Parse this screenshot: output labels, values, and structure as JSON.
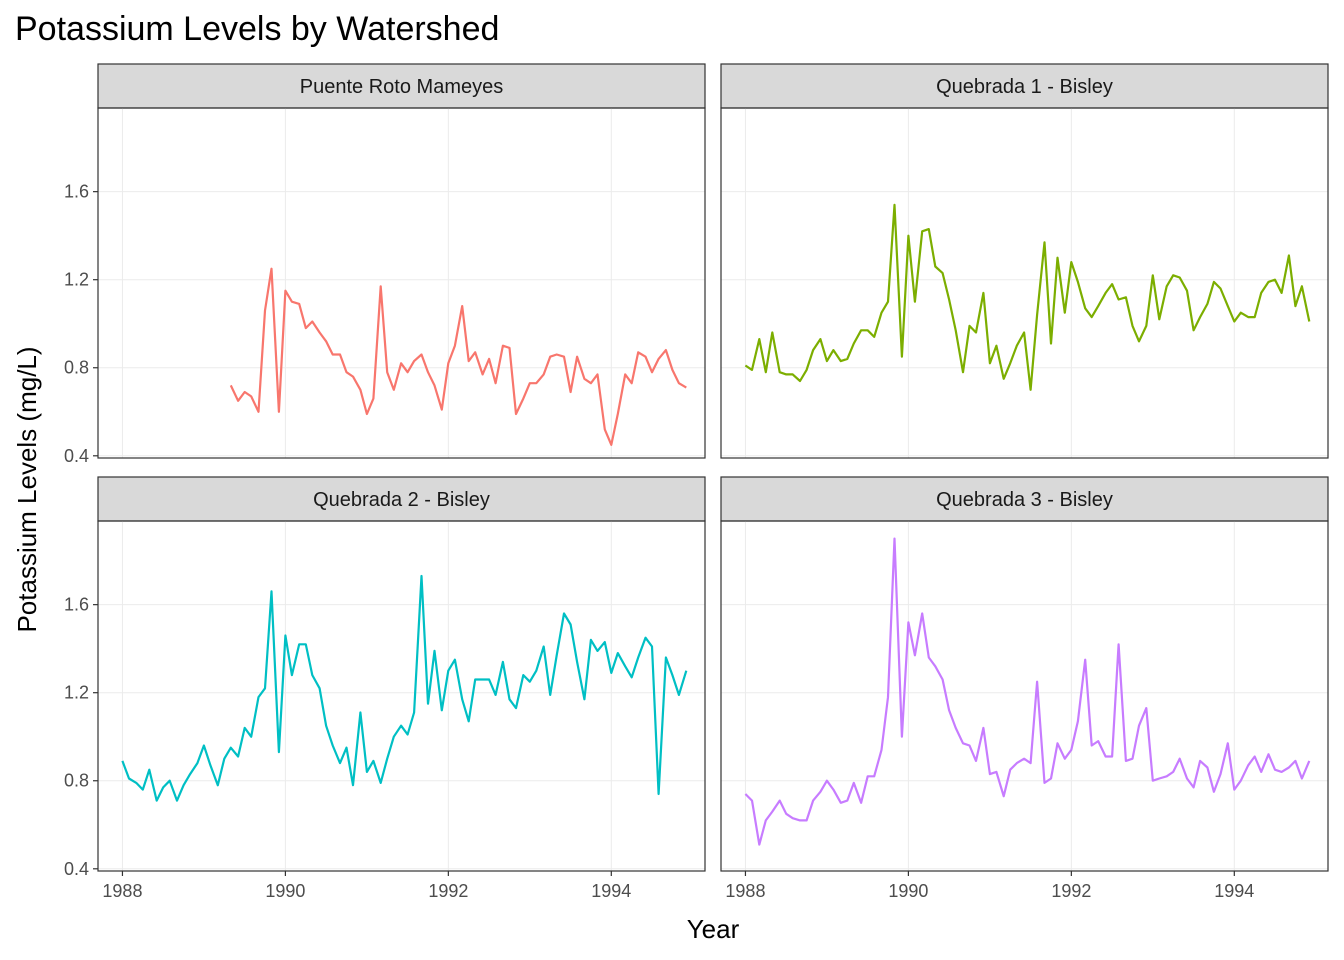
{
  "chart_data": {
    "type": "line",
    "title": "Potassium Levels by Watershed",
    "xlabel": "Year",
    "ylabel": "Potassium Levels (mg/L)",
    "xlim": [
      1987.7,
      1995.15
    ],
    "ylim": [
      0.39,
      1.98
    ],
    "x_ticks": [
      1988,
      1990,
      1992,
      1994
    ],
    "y_ticks": [
      0.4,
      0.8,
      1.2,
      1.6
    ],
    "x_tick_labels": [
      "1988",
      "1990",
      "1992",
      "1994"
    ],
    "y_tick_labels": [
      "0.4",
      "0.8",
      "1.2",
      "1.6"
    ],
    "grid": true,
    "legend": "none",
    "facets": [
      {
        "name": "Puente Roto Mameyes",
        "color": "#F8766D",
        "x": [
          1989.33,
          1989.42,
          1989.5,
          1989.58,
          1989.67,
          1989.75,
          1989.83,
          1989.92,
          1990.0,
          1990.08,
          1990.17,
          1990.25,
          1990.33,
          1990.42,
          1990.5,
          1990.58,
          1990.67,
          1990.75,
          1990.83,
          1990.92,
          1991.0,
          1991.08,
          1991.17,
          1991.25,
          1991.33,
          1991.42,
          1991.5,
          1991.58,
          1991.67,
          1991.75,
          1991.83,
          1991.92,
          1992.0,
          1992.08,
          1992.17,
          1992.25,
          1992.33,
          1992.42,
          1992.5,
          1992.58,
          1992.67,
          1992.75,
          1992.83,
          1992.92,
          1993.0,
          1993.08,
          1993.17,
          1993.25,
          1993.33,
          1993.42,
          1993.5,
          1993.58,
          1993.67,
          1993.75,
          1993.83,
          1993.92,
          1994.0,
          1994.08,
          1994.17,
          1994.25,
          1994.33,
          1994.42,
          1994.5,
          1994.58,
          1994.67,
          1994.75,
          1994.83,
          1994.92
        ],
        "y": [
          0.72,
          0.65,
          0.69,
          0.67,
          0.6,
          1.06,
          1.25,
          0.6,
          1.15,
          1.1,
          1.09,
          0.98,
          1.01,
          0.96,
          0.92,
          0.86,
          0.86,
          0.78,
          0.76,
          0.7,
          0.59,
          0.66,
          1.17,
          0.78,
          0.7,
          0.82,
          0.78,
          0.83,
          0.86,
          0.78,
          0.72,
          0.61,
          0.82,
          0.9,
          1.08,
          0.83,
          0.87,
          0.77,
          0.84,
          0.73,
          0.9,
          0.89,
          0.59,
          0.66,
          0.73,
          0.73,
          0.77,
          0.85,
          0.86,
          0.85,
          0.69,
          0.85,
          0.75,
          0.73,
          0.77,
          0.52,
          0.45,
          0.59,
          0.77,
          0.73,
          0.87,
          0.85,
          0.78,
          0.84,
          0.88,
          0.79,
          0.73,
          0.71
        ]
      },
      {
        "name": "Quebrada 1 - Bisley",
        "color": "#7CAE00",
        "x": [
          1988.0,
          1988.08,
          1988.17,
          1988.25,
          1988.33,
          1988.42,
          1988.5,
          1988.58,
          1988.67,
          1988.75,
          1988.83,
          1988.92,
          1989.0,
          1989.08,
          1989.17,
          1989.25,
          1989.33,
          1989.42,
          1989.5,
          1989.58,
          1989.67,
          1989.75,
          1989.83,
          1989.92,
          1990.0,
          1990.08,
          1990.17,
          1990.25,
          1990.33,
          1990.42,
          1990.5,
          1990.58,
          1990.67,
          1990.75,
          1990.83,
          1990.92,
          1991.0,
          1991.08,
          1991.17,
          1991.25,
          1991.33,
          1991.42,
          1991.5,
          1991.58,
          1991.67,
          1991.75,
          1991.83,
          1991.92,
          1992.0,
          1992.08,
          1992.17,
          1992.25,
          1992.33,
          1992.42,
          1992.5,
          1992.58,
          1992.67,
          1992.75,
          1992.83,
          1992.92,
          1993.0,
          1993.08,
          1993.17,
          1993.25,
          1993.33,
          1993.42,
          1993.5,
          1993.58,
          1993.67,
          1993.75,
          1993.83,
          1993.92,
          1994.0,
          1994.08,
          1994.17,
          1994.25,
          1994.33,
          1994.42,
          1994.5,
          1994.58,
          1994.67,
          1994.75,
          1994.83,
          1994.92
        ],
        "y": [
          0.81,
          0.79,
          0.93,
          0.78,
          0.96,
          0.78,
          0.77,
          0.77,
          0.74,
          0.79,
          0.88,
          0.93,
          0.83,
          0.88,
          0.83,
          0.84,
          0.91,
          0.97,
          0.97,
          0.94,
          1.05,
          1.1,
          1.54,
          0.85,
          1.4,
          1.1,
          1.42,
          1.43,
          1.26,
          1.23,
          1.11,
          0.97,
          0.78,
          0.99,
          0.96,
          1.14,
          0.82,
          0.9,
          0.75,
          0.82,
          0.9,
          0.96,
          0.7,
          1.04,
          1.37,
          0.91,
          1.3,
          1.05,
          1.28,
          1.19,
          1.07,
          1.03,
          1.08,
          1.14,
          1.18,
          1.11,
          1.12,
          0.99,
          0.92,
          0.99,
          1.22,
          1.02,
          1.17,
          1.22,
          1.21,
          1.15,
          0.97,
          1.03,
          1.09,
          1.19,
          1.16,
          1.08,
          1.01,
          1.05,
          1.03,
          1.03,
          1.14,
          1.19,
          1.2,
          1.14,
          1.31,
          1.08,
          1.17,
          1.01
        ]
      },
      {
        "name": "Quebrada 2 - Bisley",
        "color": "#00BFC4",
        "x": [
          1988.0,
          1988.08,
          1988.17,
          1988.25,
          1988.33,
          1988.42,
          1988.5,
          1988.58,
          1988.67,
          1988.75,
          1988.83,
          1988.92,
          1989.0,
          1989.08,
          1989.17,
          1989.25,
          1989.33,
          1989.42,
          1989.5,
          1989.58,
          1989.67,
          1989.75,
          1989.83,
          1989.92,
          1990.0,
          1990.08,
          1990.17,
          1990.25,
          1990.33,
          1990.42,
          1990.5,
          1990.58,
          1990.67,
          1990.75,
          1990.83,
          1990.92,
          1991.0,
          1991.08,
          1991.17,
          1991.25,
          1991.33,
          1991.42,
          1991.5,
          1991.58,
          1991.67,
          1991.75,
          1991.83,
          1991.92,
          1992.0,
          1992.08,
          1992.17,
          1992.25,
          1992.33,
          1992.42,
          1992.5,
          1992.58,
          1992.67,
          1992.75,
          1992.83,
          1992.92,
          1993.0,
          1993.08,
          1993.17,
          1993.25,
          1993.33,
          1993.42,
          1993.5,
          1993.58,
          1993.67,
          1993.75,
          1993.83,
          1993.92,
          1994.0,
          1994.08,
          1994.17,
          1994.25,
          1994.33,
          1994.42,
          1994.5,
          1994.58,
          1994.67,
          1994.75,
          1994.83,
          1994.92
        ],
        "y": [
          0.89,
          0.81,
          0.79,
          0.76,
          0.85,
          0.71,
          0.77,
          0.8,
          0.71,
          0.78,
          0.83,
          0.88,
          0.96,
          0.87,
          0.78,
          0.9,
          0.95,
          0.91,
          1.04,
          1.0,
          1.18,
          1.22,
          1.66,
          0.93,
          1.46,
          1.28,
          1.42,
          1.42,
          1.28,
          1.22,
          1.05,
          0.96,
          0.88,
          0.95,
          0.78,
          1.11,
          0.84,
          0.89,
          0.79,
          0.9,
          1.0,
          1.05,
          1.01,
          1.11,
          1.73,
          1.15,
          1.39,
          1.12,
          1.3,
          1.35,
          1.17,
          1.07,
          1.26,
          1.26,
          1.26,
          1.19,
          1.34,
          1.17,
          1.13,
          1.28,
          1.25,
          1.3,
          1.41,
          1.19,
          1.37,
          1.56,
          1.51,
          1.34,
          1.17,
          1.44,
          1.39,
          1.43,
          1.29,
          1.38,
          1.32,
          1.27,
          1.36,
          1.45,
          1.41,
          0.74,
          1.36,
          1.28,
          1.19,
          1.3
        ]
      },
      {
        "name": "Quebrada 3 - Bisley",
        "color": "#C77CFF",
        "x": [
          1988.0,
          1988.08,
          1988.17,
          1988.25,
          1988.33,
          1988.42,
          1988.5,
          1988.58,
          1988.67,
          1988.75,
          1988.83,
          1988.92,
          1989.0,
          1989.08,
          1989.17,
          1989.25,
          1989.33,
          1989.42,
          1989.5,
          1989.58,
          1989.67,
          1989.75,
          1989.83,
          1989.92,
          1990.0,
          1990.08,
          1990.17,
          1990.25,
          1990.33,
          1990.42,
          1990.5,
          1990.58,
          1990.67,
          1990.75,
          1990.83,
          1990.92,
          1991.0,
          1991.08,
          1991.17,
          1991.25,
          1991.33,
          1991.42,
          1991.5,
          1991.58,
          1991.67,
          1991.75,
          1991.83,
          1991.92,
          1992.0,
          1992.08,
          1992.17,
          1992.25,
          1992.33,
          1992.42,
          1992.5,
          1992.58,
          1992.67,
          1992.75,
          1992.83,
          1992.92,
          1993.0,
          1993.08,
          1993.17,
          1993.25,
          1993.33,
          1993.42,
          1993.5,
          1993.58,
          1993.67,
          1993.75,
          1993.83,
          1993.92,
          1994.0,
          1994.08,
          1994.17,
          1994.25,
          1994.33,
          1994.42,
          1994.5,
          1994.58,
          1994.67,
          1994.75,
          1994.83,
          1994.92
        ],
        "y": [
          0.74,
          0.71,
          0.51,
          0.62,
          0.66,
          0.71,
          0.65,
          0.63,
          0.62,
          0.62,
          0.71,
          0.75,
          0.8,
          0.76,
          0.7,
          0.71,
          0.79,
          0.7,
          0.82,
          0.82,
          0.94,
          1.18,
          1.9,
          1.0,
          1.52,
          1.37,
          1.56,
          1.36,
          1.32,
          1.26,
          1.12,
          1.04,
          0.97,
          0.96,
          0.89,
          1.04,
          0.83,
          0.84,
          0.73,
          0.85,
          0.88,
          0.9,
          0.88,
          1.25,
          0.79,
          0.81,
          0.97,
          0.9,
          0.94,
          1.07,
          1.35,
          0.96,
          0.98,
          0.91,
          0.91,
          1.42,
          0.89,
          0.9,
          1.05,
          1.13,
          0.8,
          0.81,
          0.82,
          0.84,
          0.9,
          0.81,
          0.77,
          0.89,
          0.86,
          0.75,
          0.83,
          0.97,
          0.76,
          0.8,
          0.87,
          0.91,
          0.84,
          0.92,
          0.85,
          0.84,
          0.86,
          0.89,
          0.81,
          0.89
        ]
      }
    ]
  }
}
